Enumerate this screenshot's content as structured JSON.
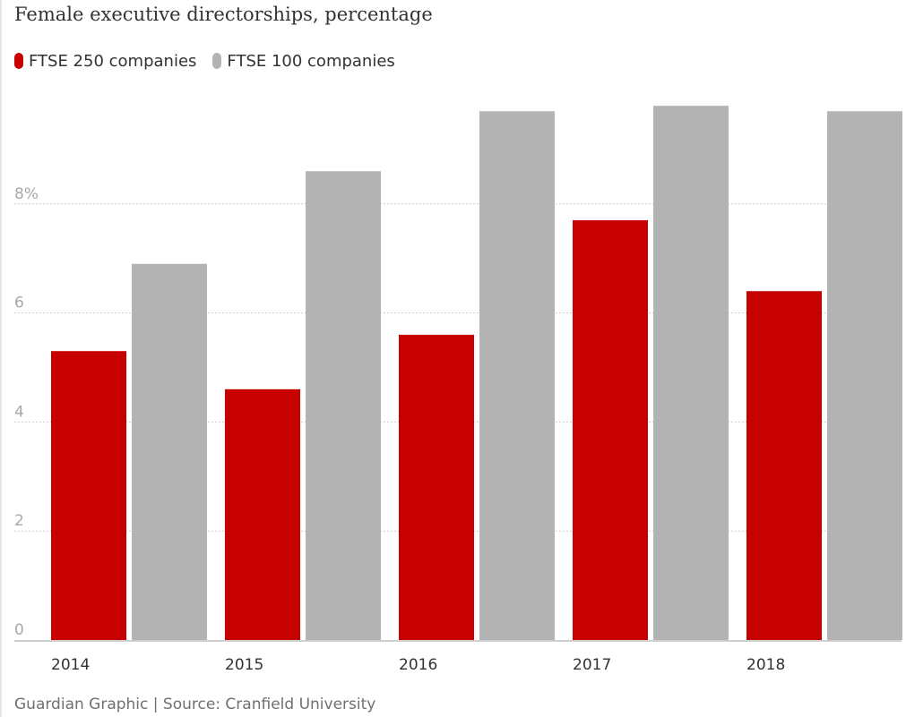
{
  "title": "Female executive directorships, percentage",
  "source": "Guardian Graphic | Source: Cranfield University",
  "colors": {
    "ftse250": "#c70000",
    "ftse100": "#b3b3b3",
    "grid": "#cccccc",
    "baseline": "#cfcfcf"
  },
  "chart_data": {
    "type": "bar",
    "title": "Female executive directorships, percentage",
    "xlabel": "",
    "ylabel": "",
    "categories": [
      "2014",
      "2015",
      "2016",
      "2017",
      "2018"
    ],
    "series": [
      {
        "name": "FTSE 250 companies",
        "color": "#c70000",
        "values": [
          5.3,
          4.6,
          5.6,
          7.7,
          6.4
        ]
      },
      {
        "name": "FTSE 100 companies",
        "color": "#b3b3b3",
        "values": [
          6.9,
          8.6,
          9.7,
          9.8,
          9.7
        ]
      }
    ],
    "ylim": [
      0,
      10
    ],
    "yticks": [
      {
        "value": 0,
        "label": "0"
      },
      {
        "value": 2,
        "label": "2"
      },
      {
        "value": 4,
        "label": "4"
      },
      {
        "value": 6,
        "label": "6"
      },
      {
        "value": 8,
        "label": "8%"
      }
    ],
    "grid": true,
    "legend_position": "top-left"
  }
}
